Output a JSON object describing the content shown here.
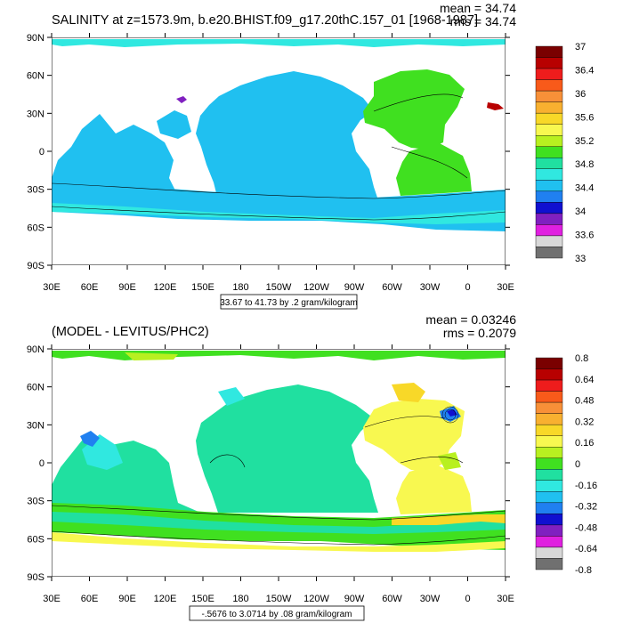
{
  "chart_data": [
    {
      "type": "heatmap",
      "title": "SALINITY at z=1573.9m, b.e20.BHIST.f09_g17.20thC.157_01 [1968-1987]",
      "stats": [
        "mean = 34.74",
        "rms = 34.74"
      ],
      "range_note": "33.67 to 41.73 by .2 gram/kilogram",
      "lat_ticks": [
        "90N",
        "60N",
        "30N",
        "0",
        "30S",
        "60S",
        "90S"
      ],
      "lon_ticks": [
        "30E",
        "60E",
        "90E",
        "120E",
        "150E",
        "180",
        "150W",
        "120W",
        "90W",
        "60W",
        "30W",
        "0",
        "30E"
      ],
      "colorbar_labels": [
        "37",
        "36.4",
        "36",
        "35.6",
        "35.2",
        "34.8",
        "34.4",
        "34",
        "33.6",
        "33"
      ],
      "colorbar_colors": [
        "#7a0000",
        "#b80000",
        "#ee1c1c",
        "#f85a1a",
        "#f89038",
        "#f8b030",
        "#f8d828",
        "#f8f850",
        "#b8f020",
        "#40e020",
        "#20e0a0",
        "#30e8e0",
        "#20c0f0",
        "#2080f0",
        "#1010d0",
        "#8020c0",
        "#e020e0",
        "#d8d8d8",
        "#707070"
      ],
      "fields": {
        "arctic": "#30e8e0",
        "pacific": "#20c0f0",
        "atlantic_north": "#40e020",
        "atlantic_south": "#40e020",
        "southern": "#20c0f0",
        "med": "#b80000",
        "indian": "#20c0f0",
        "red_sea": "#8020c0"
      }
    },
    {
      "type": "heatmap",
      "title": "(MODEL - LEVITUS/PHC2)",
      "stats": [
        "mean = 0.03246",
        "rms = 0.2079"
      ],
      "range_note": "-.5676 to 3.0714 by .08 gram/kilogram",
      "lat_ticks": [
        "90N",
        "60N",
        "30N",
        "0",
        "30S",
        "60S",
        "90S"
      ],
      "lon_ticks": [
        "30E",
        "60E",
        "90E",
        "120E",
        "150E",
        "180",
        "150W",
        "120W",
        "90W",
        "60W",
        "30W",
        "0",
        "30E"
      ],
      "colorbar_labels": [
        "0.8",
        "0.64",
        "0.48",
        "0.32",
        "0.16",
        "0",
        "-0.16",
        "-0.32",
        "-0.48",
        "-0.64",
        "-0.8"
      ],
      "colorbar_colors": [
        "#7a0000",
        "#b80000",
        "#ee1c1c",
        "#f85a1a",
        "#f89038",
        "#f8b030",
        "#f8d828",
        "#f8f850",
        "#b8f020",
        "#40e020",
        "#20e0a0",
        "#30e8e0",
        "#20c0f0",
        "#2080f0",
        "#1010d0",
        "#8020c0",
        "#e020e0",
        "#d8d8d8",
        "#707070"
      ]
    }
  ]
}
